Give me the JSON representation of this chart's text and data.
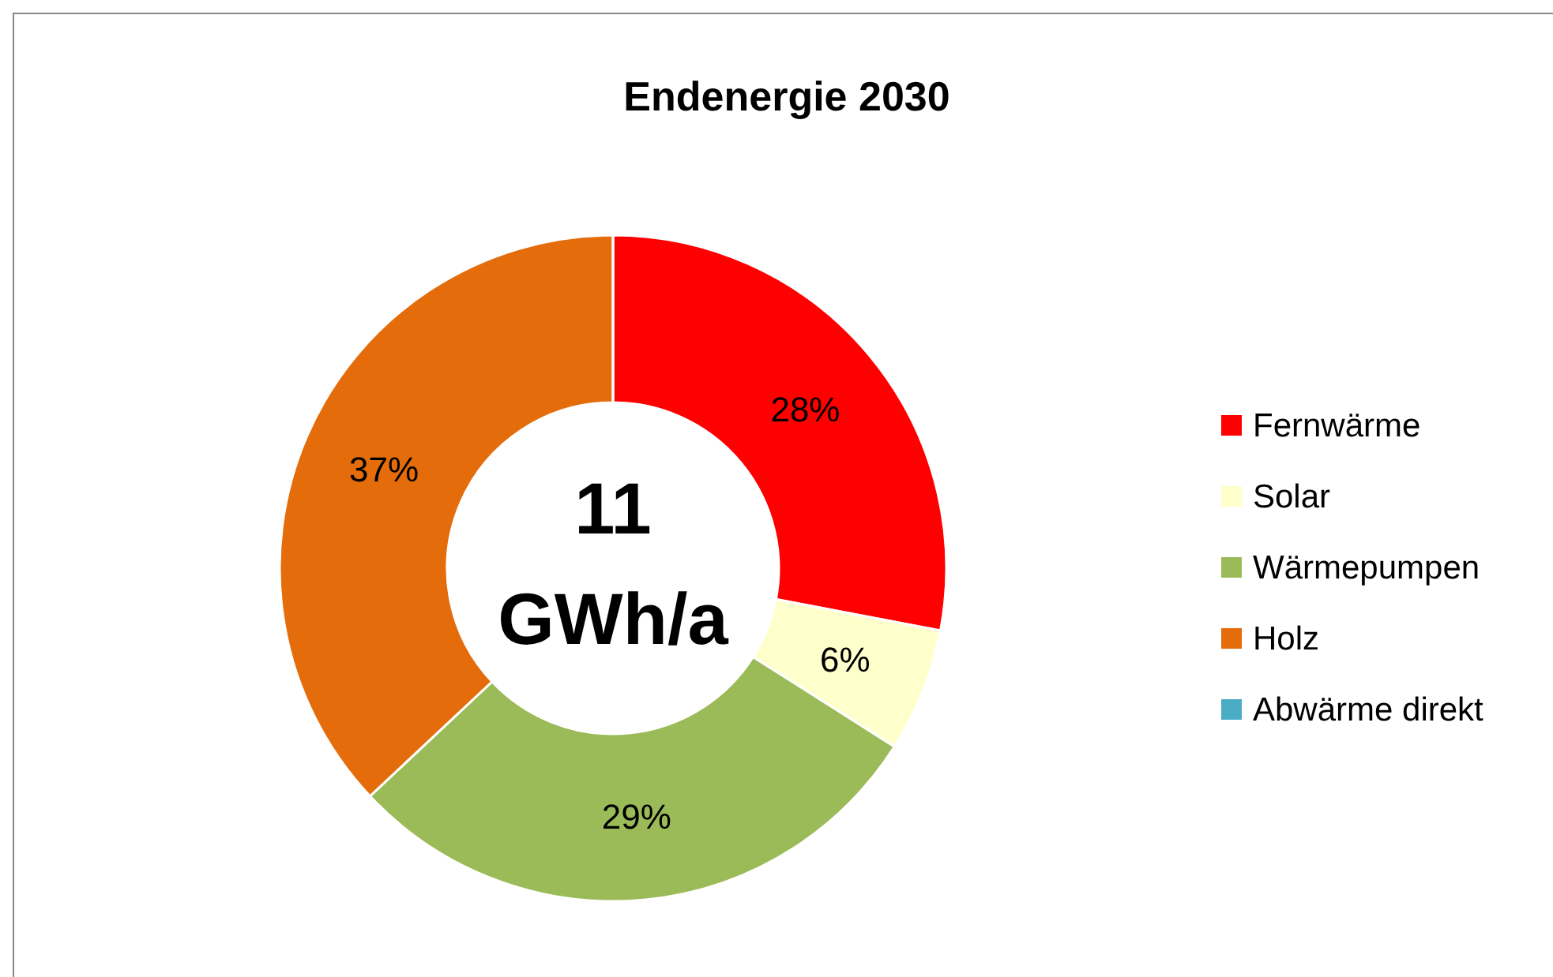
{
  "chart_data": {
    "type": "donut",
    "title": "Endenergie 2030",
    "categories": [
      "Fernwärme",
      "Solar",
      "Wärmepumpen",
      "Holz",
      "Abwärme direkt"
    ],
    "values": [
      28,
      6,
      29,
      37,
      0
    ],
    "colors": [
      "#ff0000",
      "#ffffcc",
      "#9bbb59",
      "#e46c0a",
      "#4bacc6"
    ],
    "value_labels": [
      "28%",
      "6%",
      "29%",
      "37%",
      null
    ],
    "annotations": [
      "11 GWh/a"
    ],
    "legend": "right"
  }
}
